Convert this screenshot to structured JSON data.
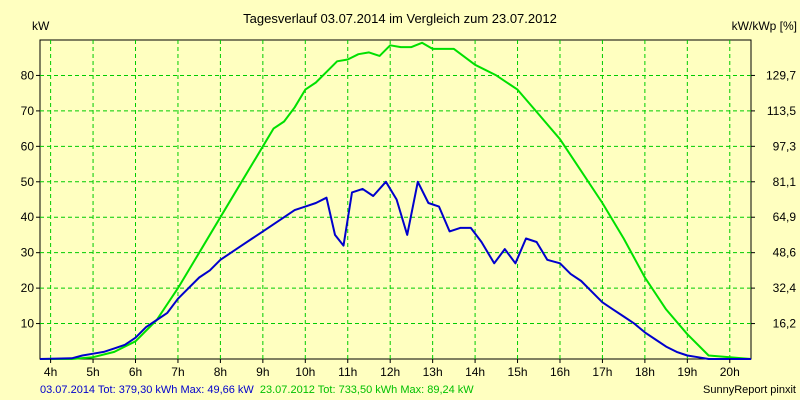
{
  "chart_data": {
    "type": "line",
    "title": "Tagesverlauf 03.07.2014 im Vergleich zum 23.07.2012",
    "ylabel_left": "kW",
    "ylabel_right": "kW/kWp [%]",
    "xlim": [
      3.75,
      20.5
    ],
    "ylim": [
      0,
      90
    ],
    "grid": true,
    "x_ticks": [
      4,
      5,
      6,
      7,
      8,
      9,
      10,
      11,
      12,
      13,
      14,
      15,
      16,
      17,
      18,
      19,
      20
    ],
    "x_tick_labels": [
      "4h",
      "5h",
      "6h",
      "7h",
      "8h",
      "9h",
      "10h",
      "11h",
      "12h",
      "13h",
      "14h",
      "15h",
      "16h",
      "17h",
      "18h",
      "19h",
      "20h"
    ],
    "y_ticks": [
      10,
      20,
      30,
      40,
      50,
      60,
      70,
      80
    ],
    "y_tick_labels": [
      "10",
      "20",
      "30",
      "40",
      "50",
      "60",
      "70",
      "80"
    ],
    "y2_tick_labels": [
      "16,2",
      "32,4",
      "48,6",
      "64,9",
      "81,1",
      "97,3",
      "113,5",
      "129,7"
    ],
    "series": [
      {
        "name": "03.07.2014",
        "color": "#0000cc",
        "points": [
          [
            3.75,
            0
          ],
          [
            4.5,
            0.2
          ],
          [
            4.75,
            1
          ],
          [
            5,
            1.5
          ],
          [
            5.25,
            2
          ],
          [
            5.5,
            3
          ],
          [
            5.75,
            4
          ],
          [
            6,
            6
          ],
          [
            6.25,
            9
          ],
          [
            6.5,
            11
          ],
          [
            6.75,
            13
          ],
          [
            7,
            17
          ],
          [
            7.25,
            20
          ],
          [
            7.5,
            23
          ],
          [
            7.75,
            25
          ],
          [
            8,
            28
          ],
          [
            8.25,
            30
          ],
          [
            8.5,
            32
          ],
          [
            8.75,
            34
          ],
          [
            9,
            36
          ],
          [
            9.25,
            38
          ],
          [
            9.5,
            40
          ],
          [
            9.75,
            42
          ],
          [
            10,
            43
          ],
          [
            10.25,
            44
          ],
          [
            10.5,
            45.5
          ],
          [
            10.7,
            35
          ],
          [
            10.9,
            32
          ],
          [
            11.1,
            47
          ],
          [
            11.35,
            48
          ],
          [
            11.6,
            46
          ],
          [
            11.9,
            50
          ],
          [
            12.15,
            45
          ],
          [
            12.4,
            35
          ],
          [
            12.65,
            50
          ],
          [
            12.9,
            44
          ],
          [
            13.15,
            43
          ],
          [
            13.4,
            36
          ],
          [
            13.65,
            37
          ],
          [
            13.9,
            37
          ],
          [
            14.15,
            33
          ],
          [
            14.45,
            27
          ],
          [
            14.7,
            31
          ],
          [
            14.95,
            27
          ],
          [
            15.2,
            34
          ],
          [
            15.45,
            33
          ],
          [
            15.7,
            28
          ],
          [
            16,
            27
          ],
          [
            16.25,
            24
          ],
          [
            16.5,
            22
          ],
          [
            16.75,
            19
          ],
          [
            17,
            16
          ],
          [
            17.25,
            14
          ],
          [
            17.5,
            12
          ],
          [
            17.75,
            10
          ],
          [
            18,
            7.5
          ],
          [
            18.25,
            5.5
          ],
          [
            18.5,
            3.5
          ],
          [
            18.75,
            2
          ],
          [
            19,
            1
          ],
          [
            19.25,
            0.5
          ],
          [
            19.5,
            0
          ],
          [
            20.5,
            0
          ]
        ]
      },
      {
        "name": "23.07.2012",
        "color": "#00e000",
        "points": [
          [
            3.75,
            0
          ],
          [
            4.5,
            0
          ],
          [
            5,
            0.5
          ],
          [
            5.5,
            2
          ],
          [
            6,
            5
          ],
          [
            6.5,
            11
          ],
          [
            7,
            20
          ],
          [
            7.5,
            30
          ],
          [
            8,
            40
          ],
          [
            8.5,
            50
          ],
          [
            9,
            60
          ],
          [
            9.25,
            65
          ],
          [
            9.5,
            67
          ],
          [
            9.75,
            71
          ],
          [
            10,
            76
          ],
          [
            10.25,
            78
          ],
          [
            10.5,
            81
          ],
          [
            10.75,
            84
          ],
          [
            11,
            84.5
          ],
          [
            11.25,
            86
          ],
          [
            11.5,
            86.5
          ],
          [
            11.75,
            85.5
          ],
          [
            12,
            88.5
          ],
          [
            12.25,
            88
          ],
          [
            12.5,
            88
          ],
          [
            12.75,
            89.2
          ],
          [
            13,
            87.5
          ],
          [
            13.5,
            87.5
          ],
          [
            14,
            83
          ],
          [
            14.5,
            80
          ],
          [
            15,
            76
          ],
          [
            15.5,
            69
          ],
          [
            16,
            62
          ],
          [
            16.5,
            53
          ],
          [
            17,
            44
          ],
          [
            17.5,
            34
          ],
          [
            18,
            23
          ],
          [
            18.5,
            14
          ],
          [
            19,
            7
          ],
          [
            19.5,
            1
          ],
          [
            20.5,
            0
          ]
        ]
      }
    ],
    "legend": {
      "s1": "03.07.2014 Tot: 379,30 kWh Max: 49,66 kW",
      "s2": "23.07.2012 Tot: 733,50 kWh Max: 89,24 kW"
    },
    "credit": "SunnyReport pinxit"
  }
}
